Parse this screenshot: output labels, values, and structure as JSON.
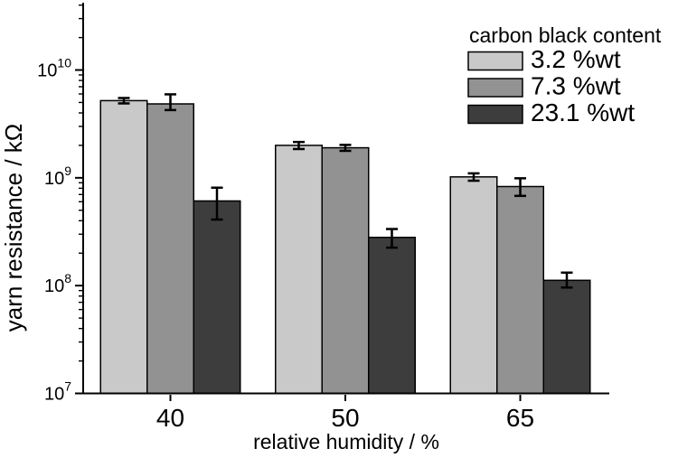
{
  "figure": {
    "background": "#ffffff",
    "plot_border_color": "#000000"
  },
  "chart_data": {
    "type": "bar",
    "title": "",
    "xlabel": "relative humidity / %",
    "ylabel": "yarn resistance / kΩ",
    "x_categories": [
      "40",
      "50",
      "65"
    ],
    "y_scale": "log10",
    "y_unit": "kΩ",
    "ylim": [
      10000000.0,
      43000000000.0
    ],
    "y_major_ticks": [
      10000000.0,
      100000000.0,
      1000000000.0,
      10000000000.0
    ],
    "y_tick_exponents": [
      7,
      8,
      9,
      10
    ],
    "y_tick_base": "10",
    "y_tick_labels": [
      "10^7",
      "10^8",
      "10^9",
      "10^10"
    ],
    "grid": false,
    "legend": {
      "title": "carbon black content",
      "position": "top-right"
    },
    "bar_edge_color": "#000000",
    "error_bar_color": "#000000",
    "series": [
      {
        "name": "3.2 %wt",
        "color": "#c9c9c9",
        "values": [
          5200000000.0,
          2000000000.0,
          1020000000.0
        ],
        "err_plus": [
          300000000.0,
          150000000.0,
          80000000.0
        ],
        "err_minus": [
          300000000.0,
          150000000.0,
          80000000.0
        ]
      },
      {
        "name": "7.3 %wt",
        "color": "#929292",
        "values": [
          4850000000.0,
          1900000000.0,
          830000000.0
        ],
        "err_plus": [
          1100000000.0,
          120000000.0,
          160000000.0
        ],
        "err_minus": [
          600000000.0,
          120000000.0,
          150000000.0
        ]
      },
      {
        "name": "23.1 %wt",
        "color": "#3d3d3d",
        "values": [
          610000000.0,
          280000000.0,
          112000000.0
        ],
        "err_plus": [
          200000000.0,
          55000000.0,
          20000000.0
        ],
        "err_minus": [
          200000000.0,
          55000000.0,
          16000000.0
        ]
      }
    ]
  }
}
